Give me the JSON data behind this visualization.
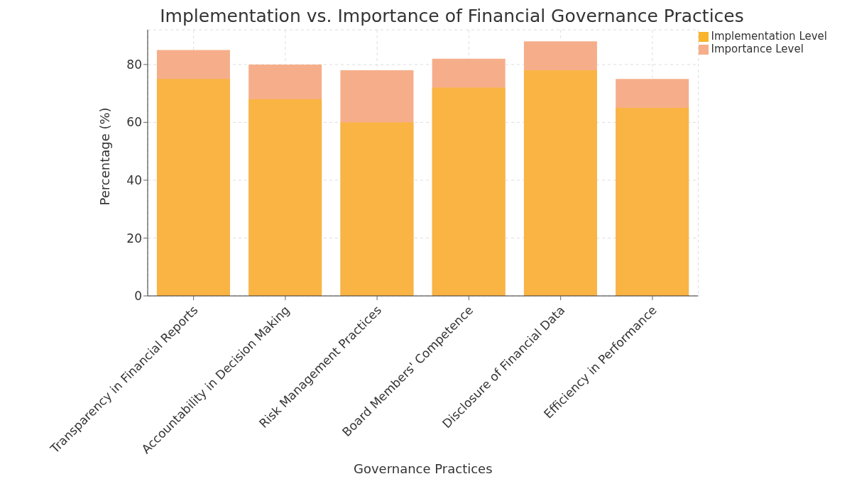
{
  "chart_data": {
    "type": "bar",
    "title": "Implementation vs. Importance of Financial Governance Practices",
    "xlabel": "Governance Practices",
    "ylabel": "Percentage (%)",
    "categories": [
      "Transparency in Financial Reports",
      "Accountability in Decision Making",
      "Risk Management Practices",
      "Board Members' Competence",
      "Disclosure of Financial Data",
      "Efficiency in Performance"
    ],
    "series": [
      {
        "name": "Implementation Level",
        "color": "#f9b52c",
        "values": [
          75,
          68,
          60,
          72,
          78,
          65
        ]
      },
      {
        "name": "Importance Level",
        "color": "#f6ae8a",
        "values": [
          85,
          80,
          78,
          82,
          88,
          75
        ]
      }
    ],
    "ylim": [
      0,
      92
    ],
    "yticks": [
      0,
      20,
      40,
      60,
      80
    ],
    "grid": true,
    "legend": "top right"
  }
}
